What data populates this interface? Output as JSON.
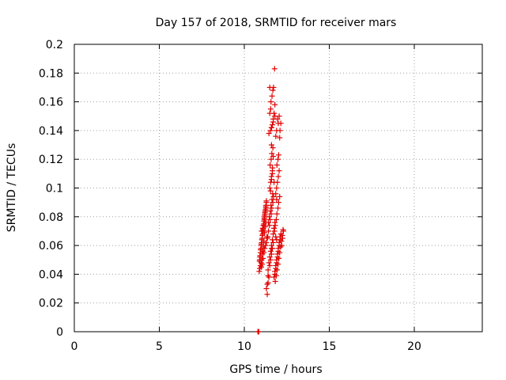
{
  "chart_data": {
    "type": "scatter",
    "title": "Day 157 of 2018, SRMTID for receiver mars",
    "xlabel": "GPS time / hours",
    "ylabel": "SRMTID / TECUs",
    "xlim": [
      0,
      24
    ],
    "ylim": [
      0,
      0.2
    ],
    "xticks": [
      0,
      5,
      10,
      15,
      20
    ],
    "yticks": [
      0,
      0.02,
      0.04,
      0.06,
      0.08,
      0.1,
      0.12,
      0.14,
      0.16,
      0.18,
      0.2
    ],
    "grid": true,
    "marker": "+",
    "color": "#e00000",
    "series": [
      {
        "x": [
          10.8,
          10.82,
          10.85,
          10.9,
          10.92,
          10.95,
          10.98,
          11.0,
          11.02,
          11.05,
          11.08,
          11.1,
          11.12,
          11.15,
          11.18,
          11.2,
          11.22,
          11.25,
          11.28,
          11.3,
          10.9,
          10.93,
          10.96,
          11.0,
          11.03,
          11.06,
          11.1,
          11.13,
          11.16,
          11.2,
          11.23,
          11.26,
          11.3,
          11.33,
          10.88,
          10.91,
          10.95,
          10.99,
          11.02,
          11.05,
          11.08,
          11.12,
          11.15,
          11.18,
          11.22,
          11.25,
          11.0,
          11.05,
          11.1,
          11.15,
          11.2,
          11.25,
          11.3,
          11.35,
          11.02,
          11.08,
          11.12,
          11.18,
          11.22,
          11.28,
          11.35,
          11.4,
          11.45,
          11.5,
          11.55,
          11.6,
          11.65,
          11.7,
          11.38,
          11.42,
          11.48,
          11.52,
          11.58,
          11.62,
          11.68,
          11.72,
          11.4,
          11.45,
          11.5,
          11.55,
          11.6,
          11.65,
          11.7,
          11.75,
          11.42,
          11.47,
          11.53,
          11.57,
          11.63,
          11.67,
          11.5,
          11.55,
          11.6,
          11.65,
          11.52,
          11.58,
          11.62,
          11.68,
          11.54,
          11.6,
          11.66,
          11.7,
          11.55,
          11.6,
          11.65,
          11.7,
          11.75,
          11.8,
          11.57,
          11.63,
          11.68,
          11.72,
          11.78,
          11.75,
          11.8,
          11.85,
          11.9,
          11.95,
          12.0,
          12.05,
          12.1,
          11.78,
          11.82,
          11.88,
          11.92,
          11.98,
          12.02,
          12.08,
          11.8,
          11.85,
          11.9,
          11.95,
          12.0,
          12.05,
          12.1,
          12.15,
          12.2,
          12.25,
          12.3,
          11.82,
          11.88,
          11.93,
          11.98,
          12.03,
          12.08,
          12.13,
          12.18,
          12.23,
          12.28,
          11.9,
          11.95,
          12.0,
          12.05,
          11.92,
          11.98,
          12.02,
          12.08,
          12.1,
          12.15,
          11.5,
          11.55,
          11.6,
          11.7,
          11.8,
          11.85,
          11.9,
          11.95,
          12.0,
          12.05,
          11.45,
          11.5,
          11.6,
          11.65,
          11.75,
          11.85,
          11.9,
          11.3,
          11.35,
          11.4,
          11.6,
          11.75,
          11.8,
          11.85,
          11.9
        ],
        "y": [
          0.0,
          0.0,
          0.0,
          0.05,
          0.052,
          0.055,
          0.058,
          0.06,
          0.062,
          0.065,
          0.068,
          0.07,
          0.072,
          0.075,
          0.078,
          0.08,
          0.082,
          0.085,
          0.088,
          0.09,
          0.049,
          0.053,
          0.057,
          0.061,
          0.064,
          0.067,
          0.071,
          0.074,
          0.077,
          0.081,
          0.084,
          0.087,
          0.091,
          0.066,
          0.042,
          0.044,
          0.046,
          0.048,
          0.05,
          0.054,
          0.056,
          0.059,
          0.063,
          0.069,
          0.073,
          0.076,
          0.045,
          0.047,
          0.051,
          0.055,
          0.058,
          0.06,
          0.062,
          0.065,
          0.07,
          0.072,
          0.074,
          0.079,
          0.083,
          0.086,
          0.026,
          0.034,
          0.038,
          0.046,
          0.05,
          0.054,
          0.058,
          0.062,
          0.066,
          0.07,
          0.074,
          0.078,
          0.082,
          0.086,
          0.09,
          0.094,
          0.043,
          0.048,
          0.052,
          0.056,
          0.06,
          0.064,
          0.068,
          0.072,
          0.076,
          0.08,
          0.084,
          0.088,
          0.092,
          0.096,
          0.1,
          0.104,
          0.108,
          0.112,
          0.116,
          0.12,
          0.124,
          0.128,
          0.098,
          0.106,
          0.114,
          0.122,
          0.14,
          0.142,
          0.144,
          0.148,
          0.152,
          0.158,
          0.16,
          0.164,
          0.168,
          0.17,
          0.183,
          0.038,
          0.042,
          0.046,
          0.05,
          0.054,
          0.058,
          0.062,
          0.066,
          0.07,
          0.074,
          0.078,
          0.082,
          0.086,
          0.09,
          0.094,
          0.04,
          0.044,
          0.048,
          0.052,
          0.056,
          0.06,
          0.064,
          0.068,
          0.06,
          0.065,
          0.07,
          0.035,
          0.039,
          0.043,
          0.047,
          0.051,
          0.055,
          0.059,
          0.063,
          0.067,
          0.071,
          0.1,
          0.104,
          0.108,
          0.112,
          0.116,
          0.12,
          0.123,
          0.135,
          0.14,
          0.145,
          0.152,
          0.155,
          0.142,
          0.146,
          0.15,
          0.136,
          0.14,
          0.148,
          0.145,
          0.15,
          0.138,
          0.17,
          0.13,
          0.11,
          0.104,
          0.096,
          0.092,
          0.03,
          0.033,
          0.039,
          0.058,
          0.072,
          0.076,
          0.066,
          0.064
        ]
      }
    ]
  }
}
